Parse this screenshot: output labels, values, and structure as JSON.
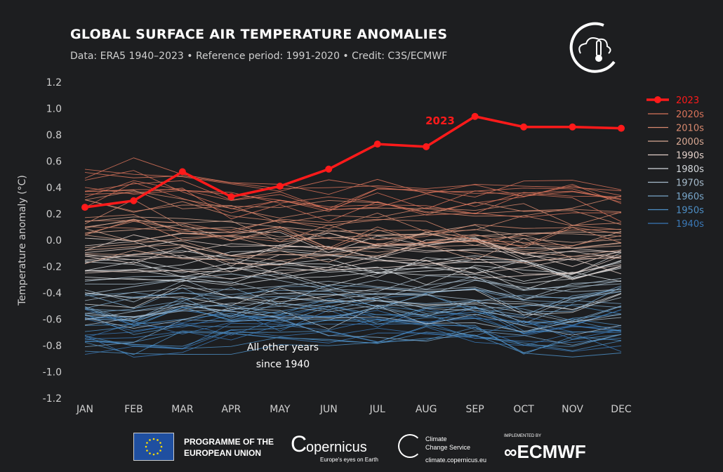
{
  "header": {
    "title": "GLOBAL SURFACE AIR TEMPERATURE ANOMALIES",
    "subtitle": "Data: ERA5 1940–2023 • Reference period: 1991-2020 • Credit: C3S/ECMWF",
    "logo_icon": "c3s-cloud-thermometer-icon"
  },
  "chart_data": {
    "type": "line",
    "title": "GLOBAL SURFACE AIR TEMPERATURE ANOMALIES",
    "ylabel": "Temperature anomaly (°C)",
    "xlabel": "",
    "categories": [
      "JAN",
      "FEB",
      "MAR",
      "APR",
      "MAY",
      "JUN",
      "JUL",
      "AUG",
      "SEP",
      "OCT",
      "NOV",
      "DEC"
    ],
    "ylim": [
      -1.2,
      1.2
    ],
    "yticks": [
      "1.2",
      "1.0",
      "0.8",
      "0.6",
      "0.4",
      "0.2",
      "0.0",
      "-0.2",
      "-0.4",
      "-0.6",
      "-0.8",
      "-1.0",
      "-1.2"
    ],
    "grid": false,
    "legend_position": "right",
    "highlight": {
      "name": "2023",
      "color": "#ff1a1a",
      "values": [
        0.25,
        0.3,
        0.52,
        0.33,
        0.41,
        0.54,
        0.73,
        0.71,
        0.94,
        0.86,
        0.86,
        0.85
      ],
      "label": "2023"
    },
    "series": [
      {
        "name": "2020s",
        "color": "#d9735a",
        "values": [
          0.4,
          0.45,
          0.4,
          0.3,
          0.3,
          0.3,
          0.3,
          0.3,
          0.3,
          0.35,
          0.35,
          0.3
        ]
      },
      {
        "name": "2010s",
        "color": "#d8896e",
        "values": [
          0.2,
          0.25,
          0.2,
          0.15,
          0.15,
          0.15,
          0.15,
          0.15,
          0.15,
          0.15,
          0.15,
          0.15
        ]
      },
      {
        "name": "2000s",
        "color": "#d8a893",
        "values": [
          0.0,
          0.05,
          0.05,
          0.0,
          0.0,
          0.0,
          0.0,
          0.0,
          0.0,
          0.0,
          0.0,
          0.0
        ]
      },
      {
        "name": "1990s",
        "color": "#e2cfc8",
        "values": [
          -0.15,
          -0.15,
          -0.15,
          -0.15,
          -0.15,
          -0.15,
          -0.15,
          -0.15,
          -0.15,
          -0.2,
          -0.2,
          -0.15
        ]
      },
      {
        "name": "1980s",
        "color": "#d4d8dc",
        "values": [
          -0.3,
          -0.3,
          -0.3,
          -0.3,
          -0.3,
          -0.3,
          -0.3,
          -0.3,
          -0.3,
          -0.35,
          -0.35,
          -0.3
        ]
      },
      {
        "name": "1970s",
        "color": "#a7bccc",
        "values": [
          -0.5,
          -0.5,
          -0.45,
          -0.45,
          -0.45,
          -0.45,
          -0.45,
          -0.45,
          -0.45,
          -0.5,
          -0.5,
          -0.45
        ]
      },
      {
        "name": "1960s",
        "color": "#78a6ca",
        "values": [
          -0.6,
          -0.6,
          -0.55,
          -0.55,
          -0.55,
          -0.55,
          -0.55,
          -0.55,
          -0.55,
          -0.6,
          -0.6,
          -0.55
        ]
      },
      {
        "name": "1950s",
        "color": "#4e8fc6",
        "values": [
          -0.7,
          -0.7,
          -0.65,
          -0.65,
          -0.65,
          -0.6,
          -0.6,
          -0.6,
          -0.65,
          -0.7,
          -0.7,
          -0.7
        ]
      },
      {
        "name": "1940s",
        "color": "#3a78b6",
        "values": [
          -0.65,
          -0.7,
          -0.65,
          -0.6,
          -0.6,
          -0.6,
          -0.6,
          -0.6,
          -0.6,
          -0.65,
          -0.65,
          -0.65
        ]
      }
    ],
    "annotations": {
      "highlight_label": "2023",
      "other_years": "All other years",
      "other_years_line2": "since 1940"
    }
  },
  "footer": {
    "eu": "PROGRAMME OF THE",
    "eu2": "EUROPEAN UNION",
    "copernicus": "opernicus",
    "copernicus_tag": "Europe's eyes on Earth",
    "c3s": "Climate",
    "c3s2": "Change Service",
    "c3s_url": "climate.copernicus.eu",
    "ecmwf_pre": "IMPLEMENTED BY",
    "ecmwf": "ECMWF"
  }
}
